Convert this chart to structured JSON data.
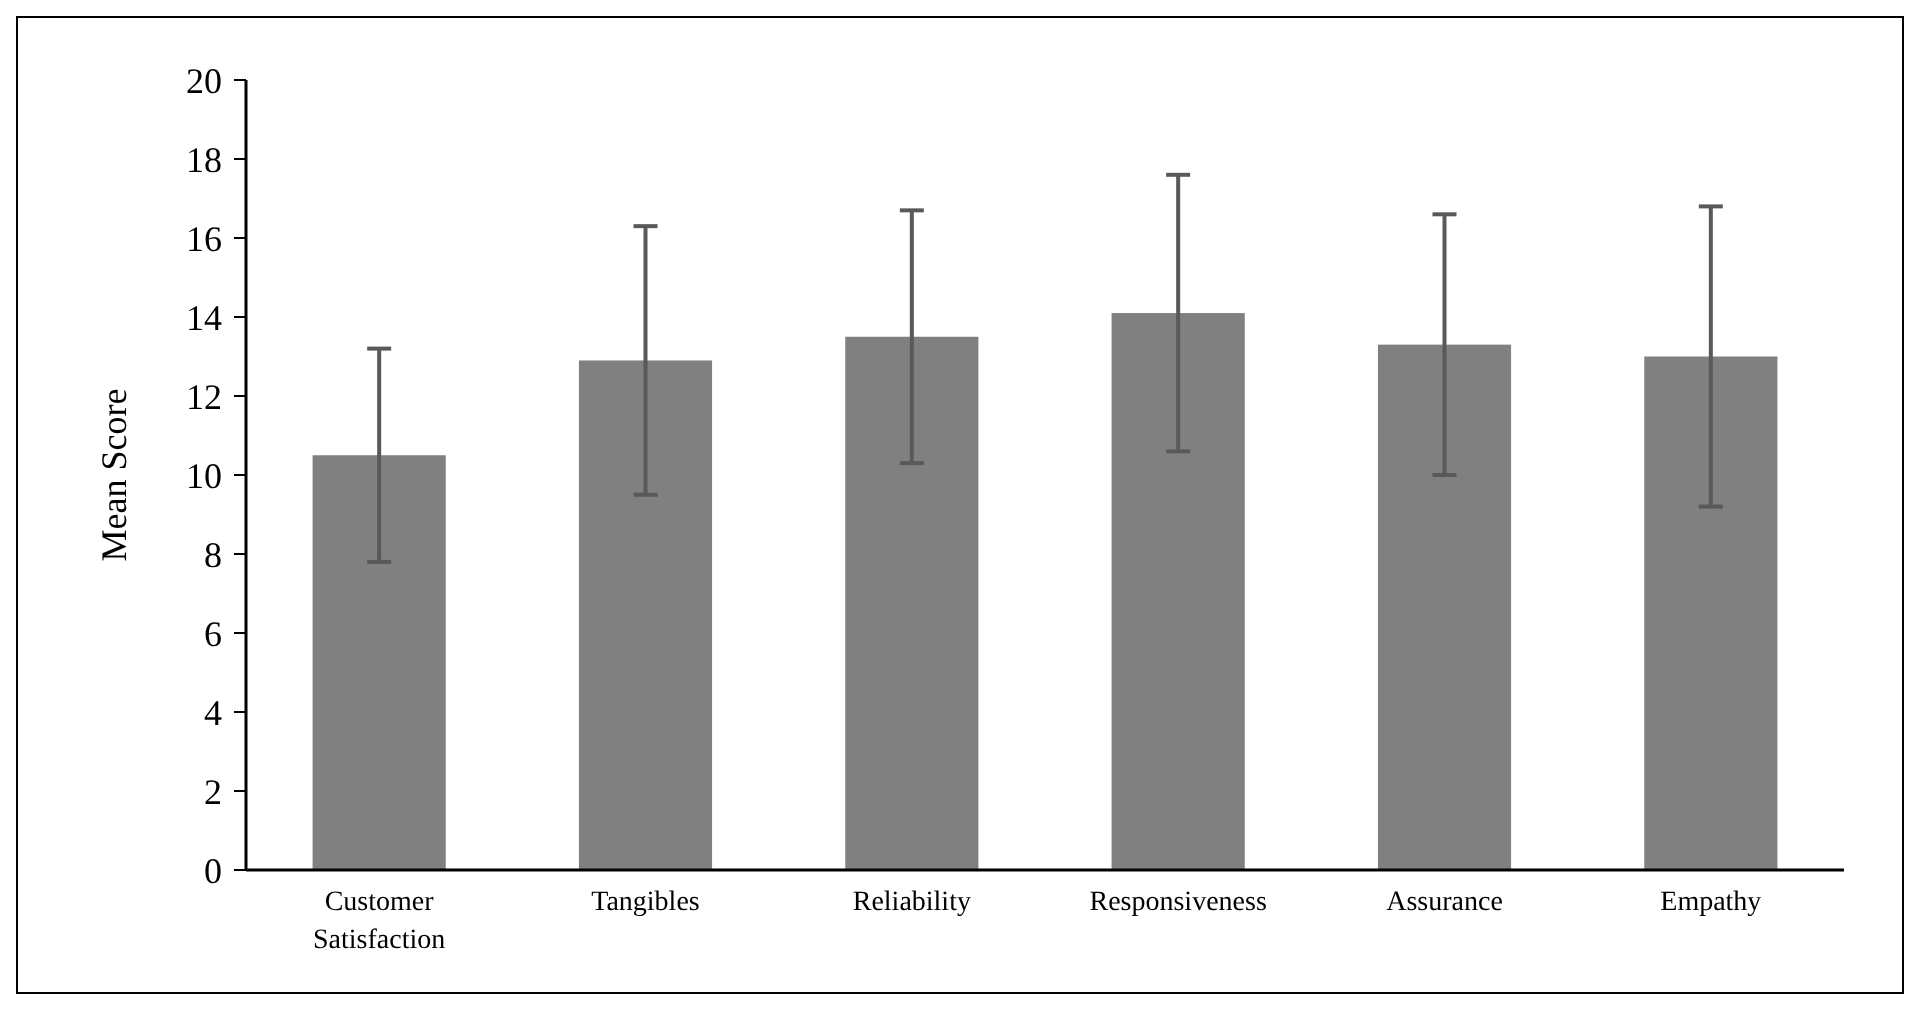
{
  "chart_data": {
    "type": "bar",
    "ylabel": "Mean Score",
    "categories": [
      "Customer Satisfaction",
      "Tangibles",
      "Reliability",
      "Responsiveness",
      "Assurance",
      "Empathy"
    ],
    "values": [
      10.5,
      12.9,
      13.5,
      14.1,
      13.3,
      13.0
    ],
    "errors": [
      2.7,
      3.4,
      3.2,
      3.5,
      3.3,
      3.8
    ],
    "color": "#808080",
    "ylim": [
      0,
      20
    ],
    "yticks": [
      0,
      2,
      4,
      6,
      8,
      10,
      12,
      14,
      16,
      18,
      20
    ],
    "grid": false
  }
}
